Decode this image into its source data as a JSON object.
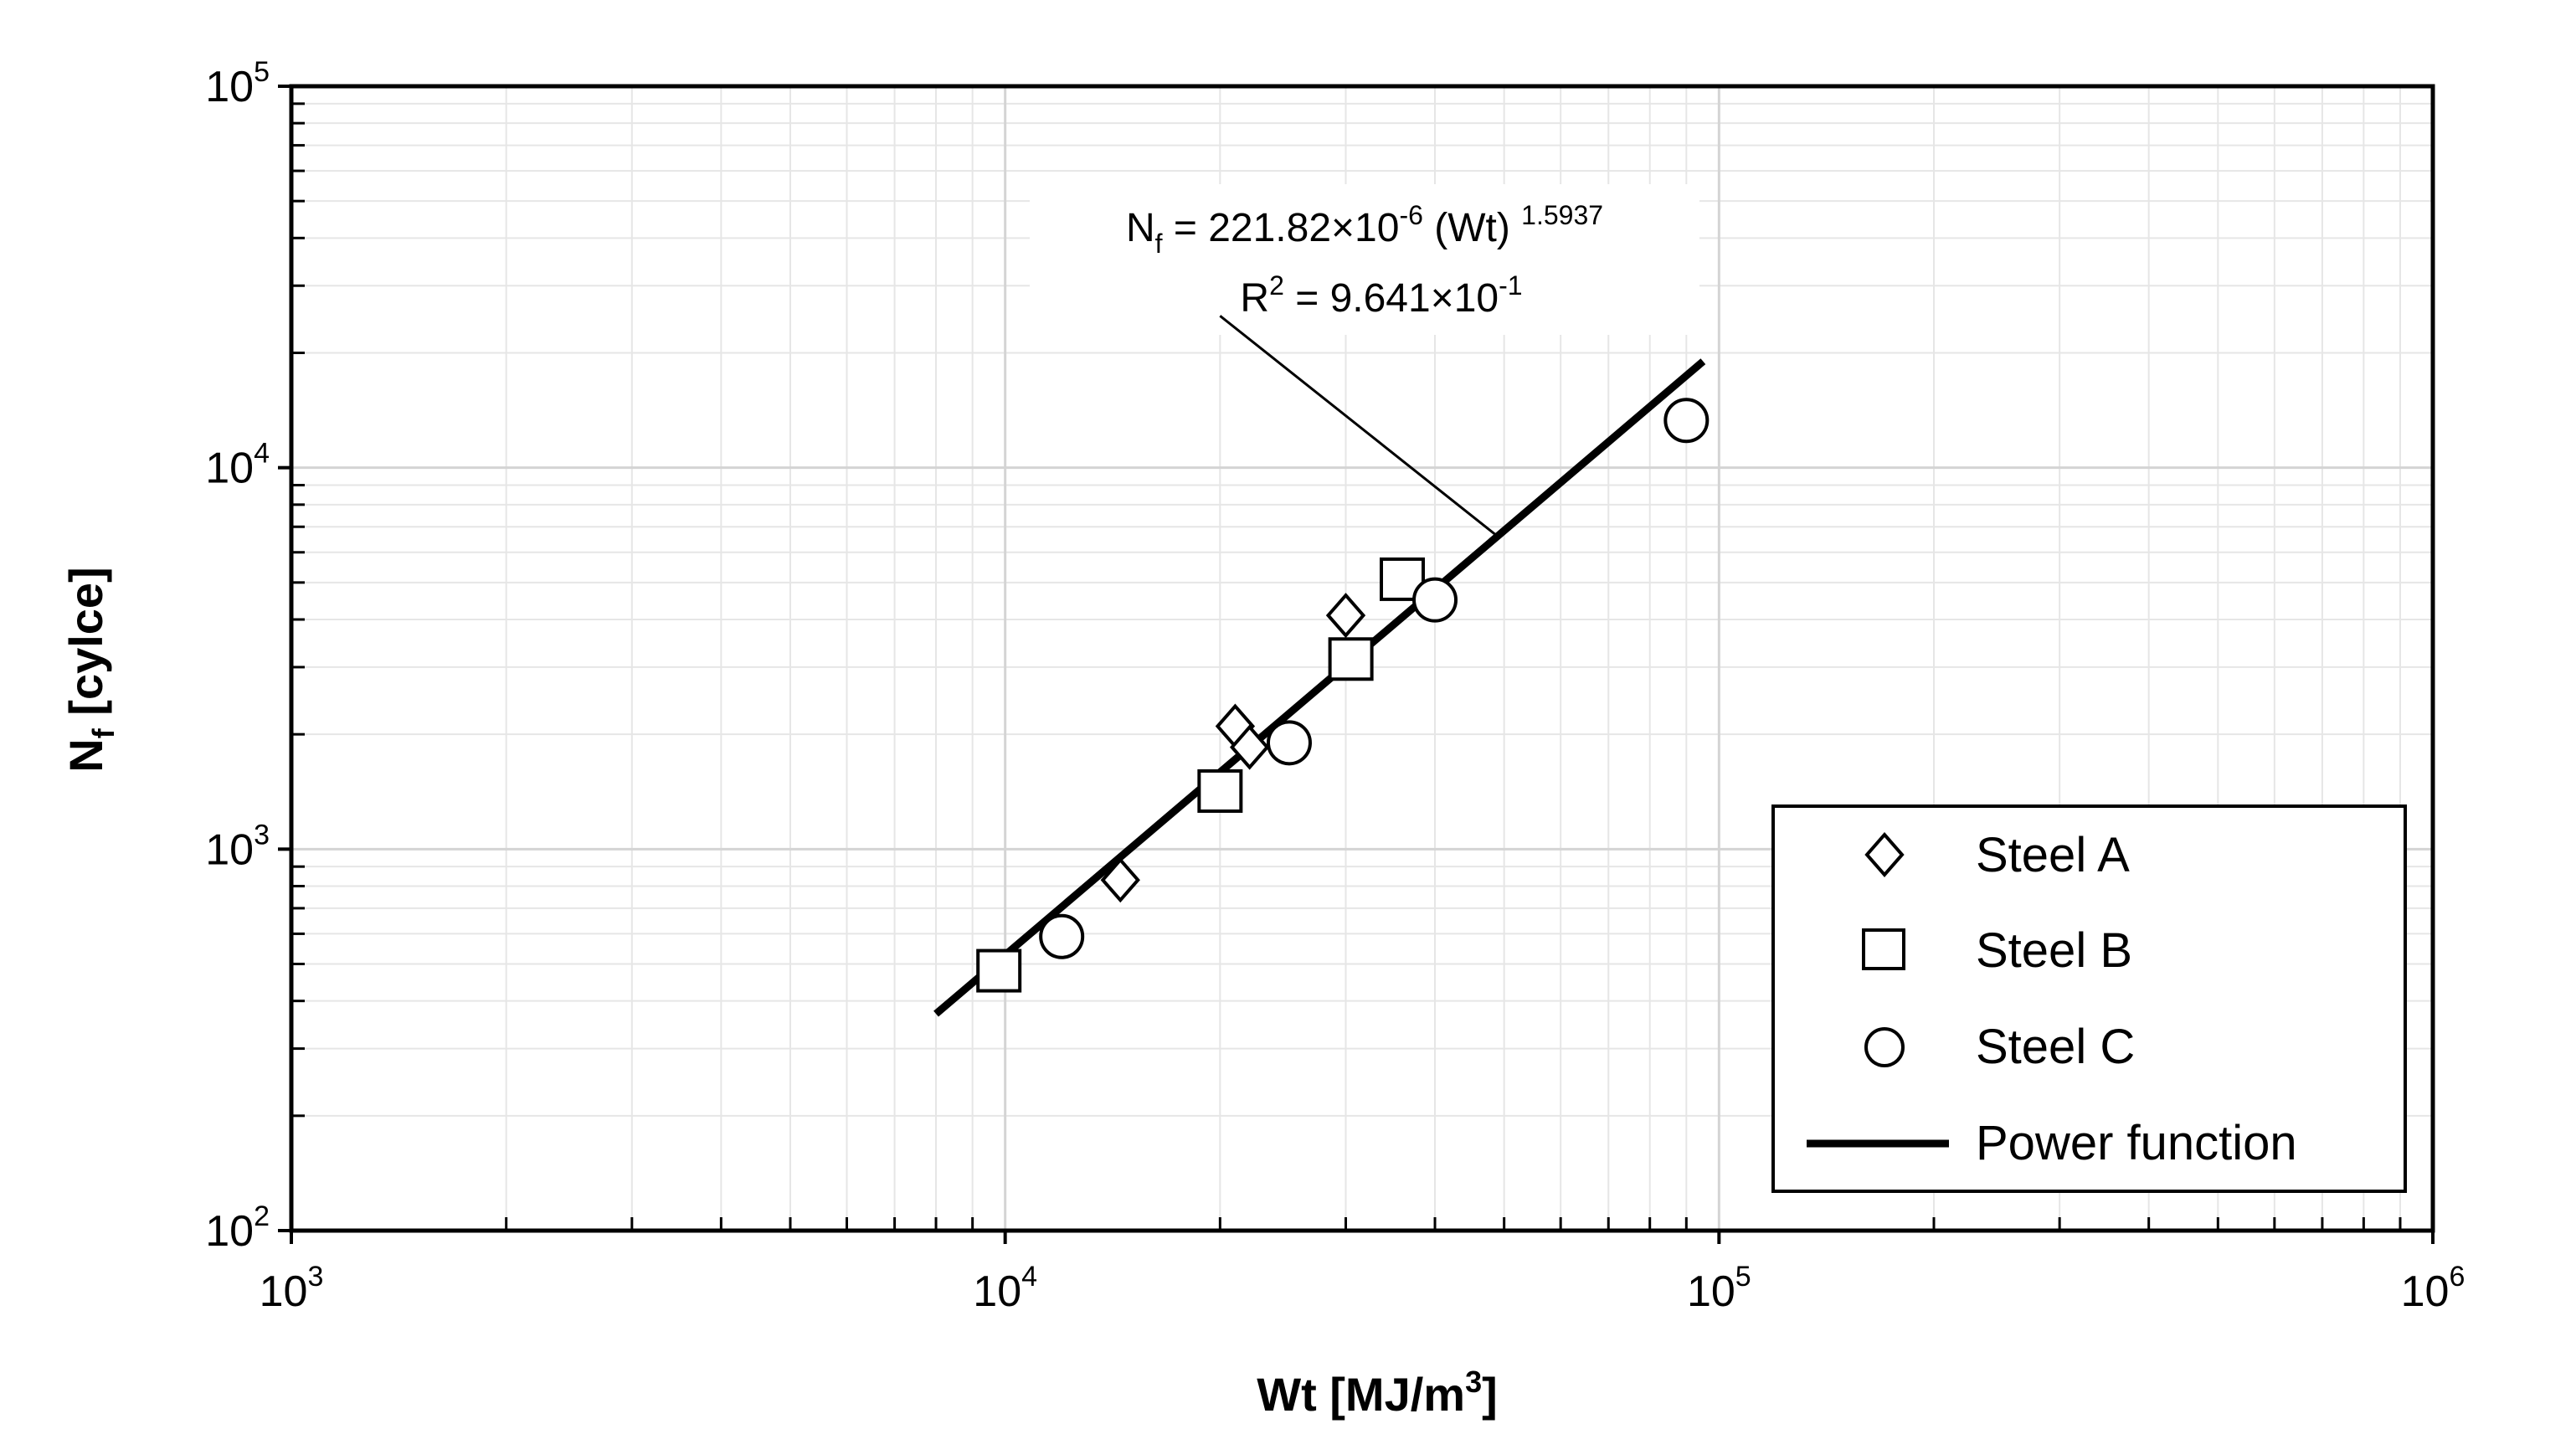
{
  "chart_data": {
    "type": "scatter",
    "x_scale": "log",
    "y_scale": "log",
    "xlim": [
      1000,
      1000000
    ],
    "ylim": [
      100,
      100000
    ],
    "grid": true,
    "legend_position": "bottom-right",
    "x_ticks": [
      {
        "value": 1000,
        "base": "10",
        "exp": "3"
      },
      {
        "value": 10000,
        "base": "10",
        "exp": "4"
      },
      {
        "value": 100000,
        "base": "10",
        "exp": "5"
      },
      {
        "value": 1000000,
        "base": "10",
        "exp": "6"
      }
    ],
    "y_ticks": [
      {
        "value": 100,
        "base": "10",
        "exp": "2"
      },
      {
        "value": 1000,
        "base": "10",
        "exp": "3"
      },
      {
        "value": 10000,
        "base": "10",
        "exp": "4"
      },
      {
        "value": 100000,
        "base": "10",
        "exp": "5"
      }
    ],
    "xlabel": {
      "main": "Wt [MJ/m",
      "sup": "3",
      "close": "]"
    },
    "ylabel": {
      "main": "N",
      "sub": "f",
      "rest": " [cylce]"
    },
    "series": [
      {
        "name": "Steel A",
        "marker": "diamond",
        "points": [
          {
            "x": 14500,
            "y": 830
          },
          {
            "x": 21000,
            "y": 2100
          },
          {
            "x": 22000,
            "y": 1850
          },
          {
            "x": 30000,
            "y": 4100
          }
        ]
      },
      {
        "name": "Steel B",
        "marker": "square",
        "points": [
          {
            "x": 9800,
            "y": 480
          },
          {
            "x": 20000,
            "y": 1420
          },
          {
            "x": 30500,
            "y": 3150
          },
          {
            "x": 36000,
            "y": 5100
          }
        ]
      },
      {
        "name": "Steel C",
        "marker": "circle",
        "points": [
          {
            "x": 12000,
            "y": 590
          },
          {
            "x": 25000,
            "y": 1900
          },
          {
            "x": 40000,
            "y": 4500
          },
          {
            "x": 90000,
            "y": 13300
          }
        ]
      },
      {
        "name": "Power function",
        "marker": "line",
        "points": [
          {
            "x": 8000,
            "y": 370
          },
          {
            "x": 95000,
            "y": 19000
          }
        ]
      }
    ],
    "annotation": {
      "eq_prefix": "N",
      "eq_sub": "f",
      "eq_mid": " = 221.82×10",
      "eq_exp": "-6",
      "eq_tail": " (Wt) ",
      "eq_power": "1.5937",
      "r2_prefix": "R",
      "r2_sup": "2",
      "r2_mid": " = 9.641×10",
      "r2_exp": "-1",
      "pointer_from": {
        "x": 20000,
        "y": 25000
      },
      "pointer_to": {
        "x": 49000,
        "y": 6600
      }
    }
  }
}
